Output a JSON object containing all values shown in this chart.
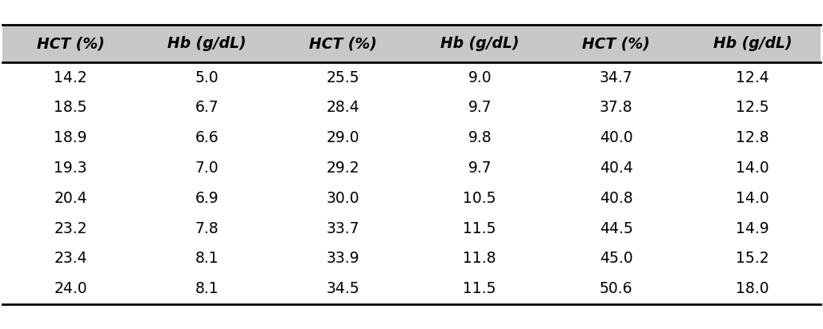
{
  "headers": [
    "HCT (%)",
    "Hb (g/dL)",
    "HCT (%)",
    "Hb (g/dL)",
    "HCT (%)",
    "Hb (g/dL)"
  ],
  "rows": [
    [
      "14.2",
      "5.0",
      "25.5",
      "9.0",
      "34.7",
      "12.4"
    ],
    [
      "18.5",
      "6.7",
      "28.4",
      "9.7",
      "37.8",
      "12.5"
    ],
    [
      "18.9",
      "6.6",
      "29.0",
      "9.8",
      "40.0",
      "12.8"
    ],
    [
      "19.3",
      "7.0",
      "29.2",
      "9.7",
      "40.4",
      "14.0"
    ],
    [
      "20.4",
      "6.9",
      "30.0",
      "10.5",
      "40.8",
      "14.0"
    ],
    [
      "23.2",
      "7.8",
      "33.7",
      "11.5",
      "44.5",
      "14.9"
    ],
    [
      "23.4",
      "8.1",
      "33.9",
      "11.8",
      "45.0",
      "15.2"
    ],
    [
      "24.0",
      "8.1",
      "34.5",
      "11.5",
      "50.6",
      "18.0"
    ]
  ],
  "background_color": "#ffffff",
  "header_bg_color": "#c8c8c8",
  "text_color": "#000000",
  "header_fontsize": 13.5,
  "cell_fontsize": 13.5,
  "figsize": [
    10.28,
    4.12
  ],
  "dpi": 100,
  "line_color": "#000000",
  "line_lw": 2.0
}
